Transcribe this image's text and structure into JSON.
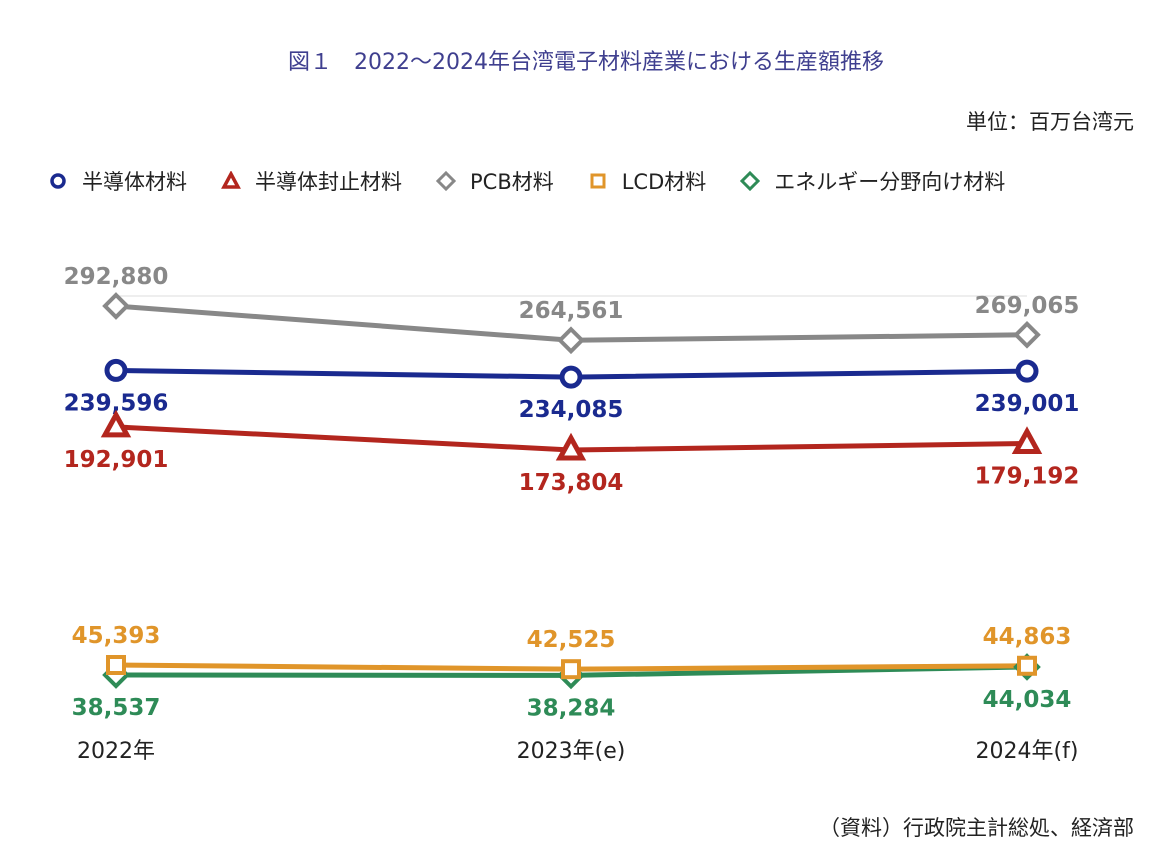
{
  "chart_data": {
    "type": "line",
    "title": "図１　2022～2024年台湾電子材料産業における生産額推移",
    "unit_label": "単位：百万台湾元",
    "source_label": "（資料）行政院主計総処、経済部",
    "categories": [
      "2022年",
      "2023年(e)",
      "2024年(f)"
    ],
    "series": [
      {
        "name": "半導体材料",
        "values": [
          239596,
          234085,
          239001
        ],
        "labels": [
          "239,596",
          "234,085",
          "239,001"
        ],
        "color": "#1a2a8f",
        "marker": "circle",
        "label_pos": "below"
      },
      {
        "name": "半導体封止材料",
        "values": [
          192901,
          173804,
          179192
        ],
        "labels": [
          "192,901",
          "173,804",
          "179,192"
        ],
        "color": "#b3261e",
        "marker": "triangle",
        "label_pos": "below"
      },
      {
        "name": "PCB材料",
        "values": [
          292880,
          264561,
          269065
        ],
        "labels": [
          "292,880",
          "264,561",
          "269,065"
        ],
        "color": "#888888",
        "marker": "diamond",
        "label_pos": "above"
      },
      {
        "name": "LCD材料",
        "values": [
          45393,
          42525,
          44863
        ],
        "labels": [
          "45,393",
          "42,525",
          "44,863"
        ],
        "color": "#e0952a",
        "marker": "square",
        "label_pos": "above"
      },
      {
        "name": "エネルギー分野向け材料",
        "values": [
          38537,
          38284,
          44034
        ],
        "labels": [
          "38,537",
          "38,284",
          "44,034"
        ],
        "color": "#2e8b57",
        "marker": "diamond",
        "label_pos": "below"
      }
    ],
    "ylim": [
      0,
      320000
    ],
    "grid": false,
    "legend": "top"
  }
}
